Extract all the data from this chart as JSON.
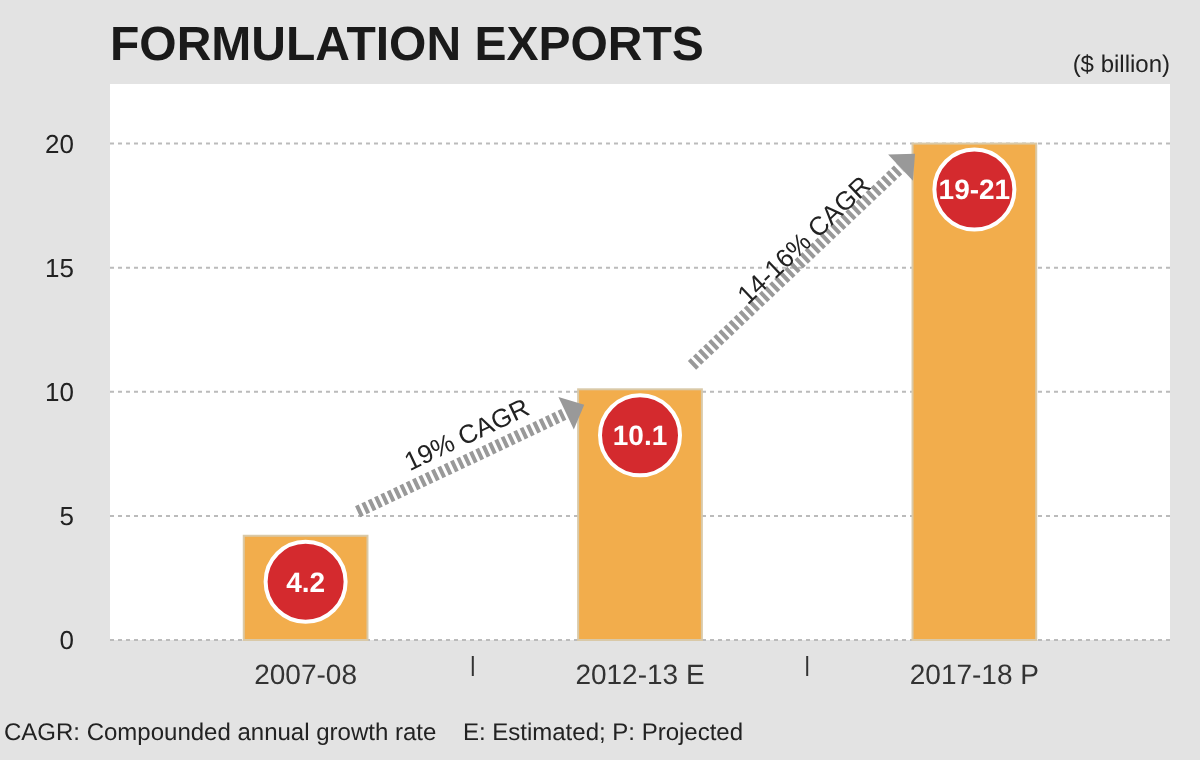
{
  "chart_data": {
    "type": "bar",
    "title": "FORMULATION EXPORTS",
    "ylabel": "($ billion)",
    "categories": [
      "2007-08",
      "2012-13 E",
      "2017-18 P"
    ],
    "values": [
      4.2,
      10.1,
      20
    ],
    "value_labels": [
      "4.2",
      "10.1",
      "19-21"
    ],
    "color": "#f2ad4c",
    "ylim": [
      0,
      22.4
    ],
    "yticks": [
      0,
      5,
      10,
      15,
      20
    ],
    "grid": "y",
    "annotations": [
      "19% CAGR",
      "14-16% CAGR",
      "CAGR: Compounded annual growth rate    E: Estimated; P: Projected"
    ]
  }
}
